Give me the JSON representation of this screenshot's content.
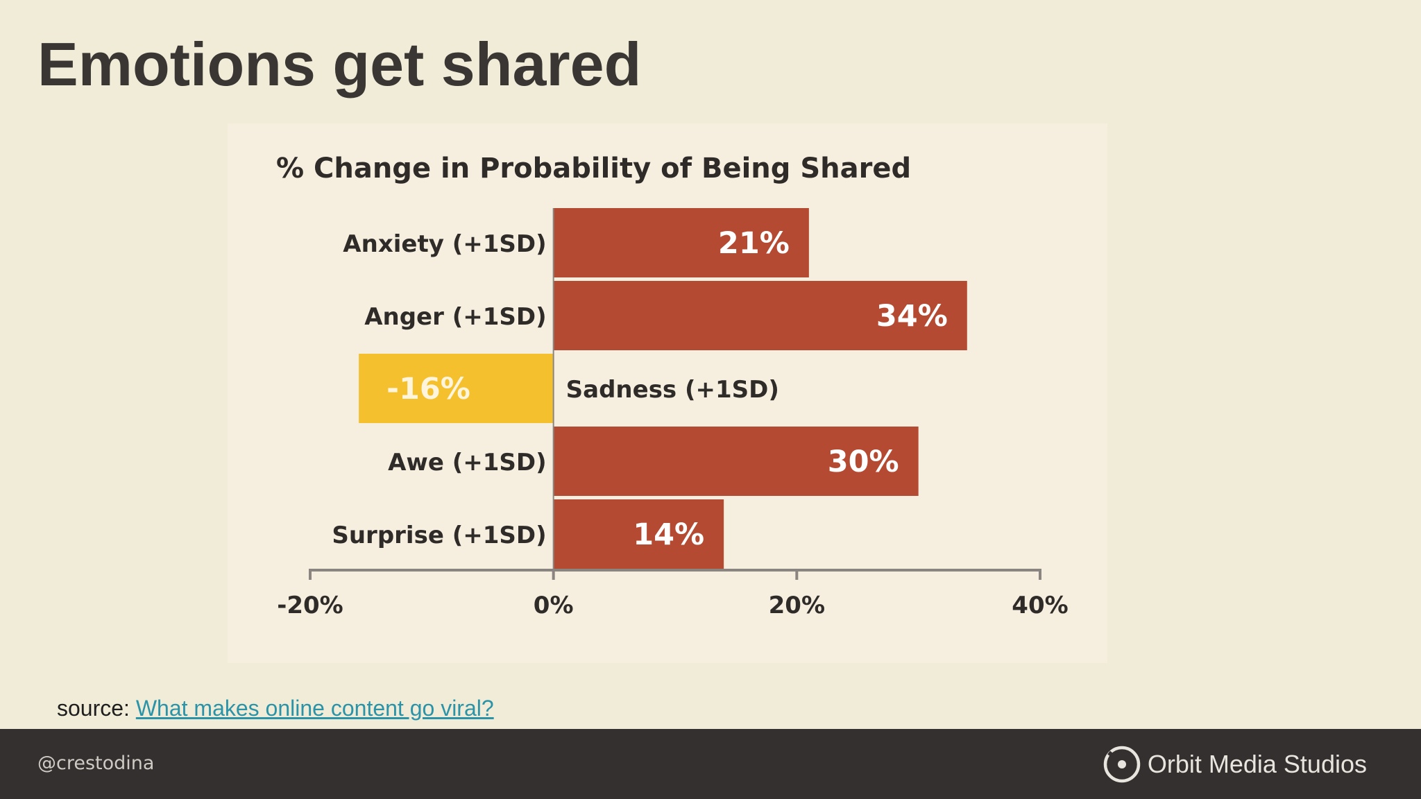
{
  "slide": {
    "title": "Emotions get shared",
    "source_prefix": "source: ",
    "source_link_text": "What makes online content go viral?",
    "footer_handle": "@crestodina",
    "footer_brand": "Orbit Media Studios"
  },
  "colors": {
    "positive_bar": "#b54a33",
    "negative_bar": "#f5c02e",
    "background": "#f1ecd8",
    "chart_background": "#f6efe0",
    "footer": "#343030",
    "link": "#2b93a8"
  },
  "chart_data": {
    "type": "bar",
    "orientation": "horizontal",
    "title": "% Change in Probability of Being Shared",
    "categories": [
      "Anxiety (+1SD)",
      "Anger (+1SD)",
      "Sadness (+1SD)",
      "Awe (+1SD)",
      "Surprise (+1SD)"
    ],
    "values": [
      21,
      34,
      -16,
      30,
      14
    ],
    "data_labels": [
      "21%",
      "34%",
      "-16%",
      "30%",
      "14%"
    ],
    "xlim": [
      -20,
      40
    ],
    "xticks": [
      -20,
      0,
      20,
      40
    ],
    "xtick_labels": [
      "-20%",
      "0%",
      "20%",
      "40%"
    ],
    "grid": false,
    "legend": "none"
  }
}
